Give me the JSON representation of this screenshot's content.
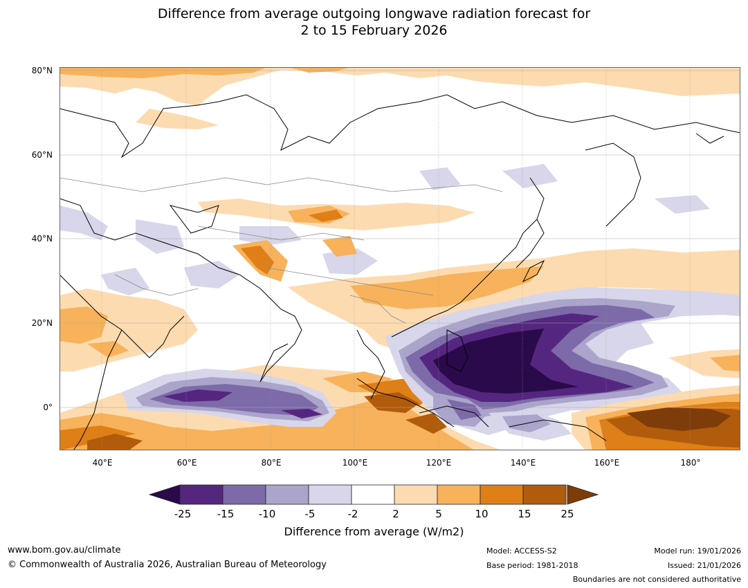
{
  "title": {
    "line1": "Difference from average outgoing longwave radiation forecast for",
    "line2": "2 to 15 February 2026"
  },
  "axes": {
    "lat_labels": [
      "80°N",
      "60°N",
      "40°N",
      "20°N",
      "0°"
    ],
    "lon_labels": [
      "40°E",
      "60°E",
      "80°E",
      "100°E",
      "120°E",
      "140°E",
      "160°E",
      "180°"
    ]
  },
  "colorbar": {
    "ticks": [
      "-25",
      "-15",
      "-10",
      "-5",
      "-2",
      "2",
      "5",
      "10",
      "15",
      "25"
    ],
    "colors": [
      "#2a0a4b",
      "#55267f",
      "#7d6aa9",
      "#aba4cb",
      "#d7d6ea",
      "#ffffff",
      "#fddbb0",
      "#f7b25b",
      "#de7f17",
      "#b15b0c",
      "#7e3c0a"
    ],
    "label": "Difference from average (W/m2)"
  },
  "footer": {
    "website": "www.bom.gov.au/climate",
    "copyright": "© Commonwealth of Australia 2026, Australian Bureau of Meteorology",
    "model": "Model: ACCESS-S2",
    "base_period": "Base period: 1981-2018",
    "model_run": "Model run: 19/01/2026",
    "issued": "Issued: 21/01/2026",
    "disclaimer": "Boundaries are not considered authoritative"
  }
}
